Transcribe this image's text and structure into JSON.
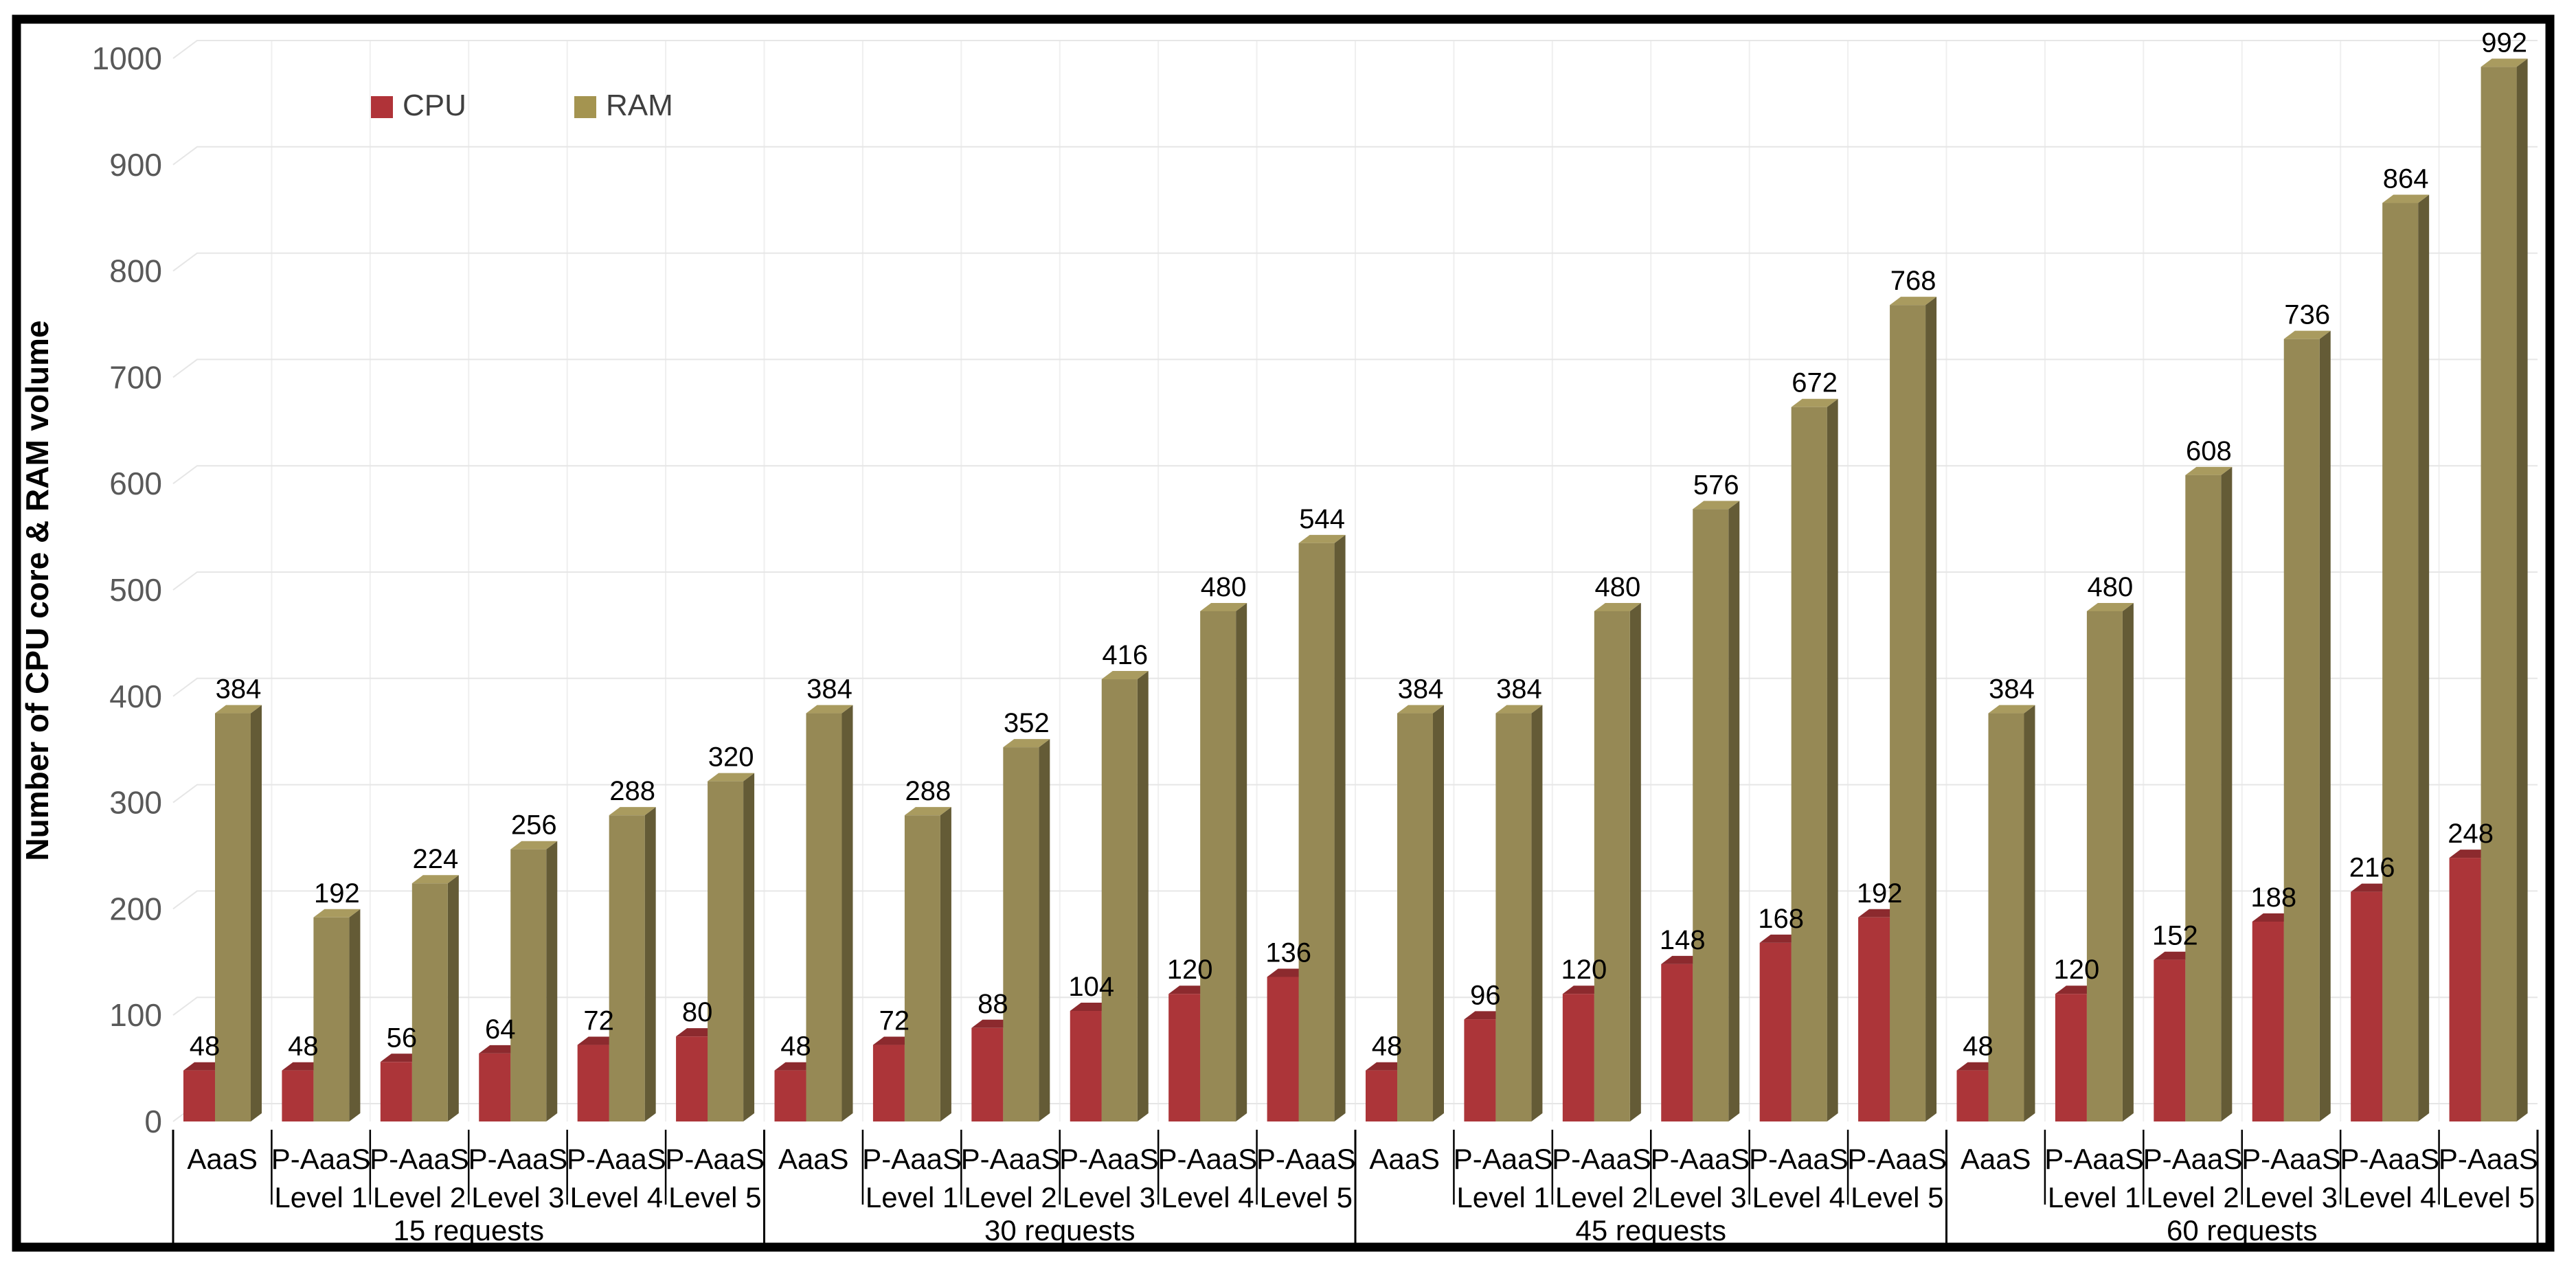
{
  "frame": {
    "background": "#FFFFFF",
    "border_color": "#000000"
  },
  "legend": {
    "items": [
      {
        "label": "CPU",
        "color": "#B03338"
      },
      {
        "label": "RAM",
        "color": "#A49450"
      }
    ]
  },
  "chart_data": {
    "type": "bar",
    "title": "",
    "xlabel": "",
    "ylabel": "Number of CPU core & RAM volume",
    "ylim": [
      0,
      1000
    ],
    "ytick_interval": 100,
    "ytick_labels": [
      "0",
      "100",
      "200",
      "300",
      "400",
      "500",
      "600",
      "700",
      "800",
      "900",
      "1000"
    ],
    "grid": true,
    "legend_position": "top-left",
    "style": "3d-column",
    "group_labels": [
      "15 requests",
      "30 requests",
      "45 requests",
      "60 requests"
    ],
    "categories": [
      "AaaS",
      "P-AaaS Level 1",
      "P-AaaS Level 2",
      "P-AaaS Level 3",
      "P-AaaS Level 4",
      "P-AaaS Level 5"
    ],
    "series": [
      {
        "name": "CPU",
        "color": "#AC3539",
        "color_top": "#8C2A2E",
        "color_side": "#7C2226",
        "values": [
          [
            48,
            48,
            56,
            64,
            72,
            80
          ],
          [
            48,
            72,
            88,
            104,
            120,
            136
          ],
          [
            48,
            96,
            120,
            148,
            168,
            192
          ],
          [
            48,
            120,
            152,
            188,
            216,
            248
          ]
        ]
      },
      {
        "name": "RAM",
        "color": "#968955",
        "color_top": "#A99B5F",
        "color_side": "#645B36",
        "values": [
          [
            384,
            192,
            224,
            256,
            288,
            320
          ],
          [
            384,
            288,
            352,
            416,
            480,
            544
          ],
          [
            384,
            384,
            480,
            576,
            672,
            768
          ],
          [
            384,
            480,
            608,
            736,
            864,
            992
          ]
        ]
      }
    ],
    "data_labels_visible": true
  }
}
